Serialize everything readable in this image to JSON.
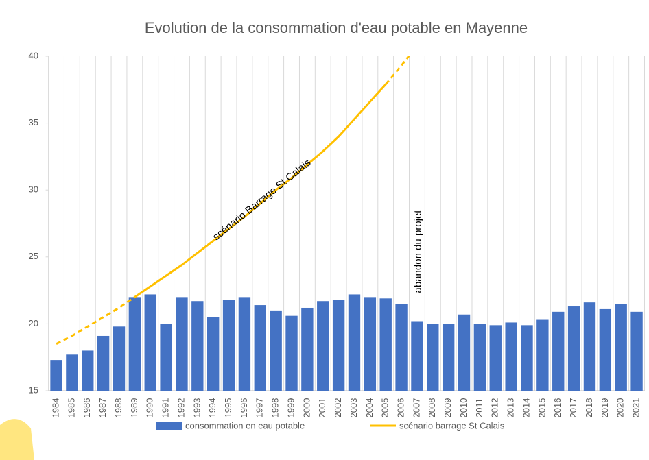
{
  "chart_data": {
    "type": "bar",
    "title": "Evolution de la consommation d'eau potable en Mayenne",
    "categories": [
      "1984",
      "1985",
      "1986",
      "1987",
      "1988",
      "1989",
      "1990",
      "1991",
      "1992",
      "1993",
      "1994",
      "1995",
      "1996",
      "1997",
      "1998",
      "1999",
      "2000",
      "2001",
      "2002",
      "2003",
      "2004",
      "2005",
      "2006",
      "2007",
      "2008",
      "2009",
      "2010",
      "2011",
      "2012",
      "2013",
      "2014",
      "2015",
      "2016",
      "2017",
      "2018",
      "2019",
      "2020",
      "2021"
    ],
    "series": [
      {
        "name": "consommation en eau potable",
        "type": "bar",
        "color": "#4472c4",
        "values": [
          17.3,
          17.7,
          18.0,
          19.1,
          19.8,
          22.0,
          22.2,
          20.0,
          22.0,
          21.7,
          20.5,
          21.8,
          22.0,
          21.4,
          21.0,
          20.6,
          21.2,
          21.7,
          21.8,
          22.2,
          22.0,
          21.9,
          21.5,
          20.2,
          20.0,
          20.0,
          20.7,
          20.0,
          19.9,
          20.1,
          19.9,
          20.3,
          20.9,
          21.3,
          21.6,
          21.1,
          21.5,
          20.9
        ]
      },
      {
        "name": "scénario barrage St Calais",
        "type": "line",
        "color": "#ffc000",
        "values": [
          18.5,
          19.1,
          19.8,
          20.5,
          21.2,
          22.0,
          22.8,
          23.6,
          24.4,
          25.3,
          26.2,
          27.1,
          28.0,
          29.0,
          30.0,
          30.9,
          31.9,
          32.9,
          34.0,
          35.3,
          36.6,
          37.9,
          39.3,
          40.8,
          null,
          null,
          null,
          null,
          null,
          null,
          null,
          null,
          null,
          null,
          null,
          null,
          null,
          null
        ]
      }
    ],
    "annotations": [
      "scénario Barrage St Calais",
      "abandon du projet"
    ],
    "ylim": [
      15,
      40
    ],
    "yticks": [
      15,
      20,
      25,
      30,
      35,
      40
    ],
    "legend": "bottom"
  }
}
